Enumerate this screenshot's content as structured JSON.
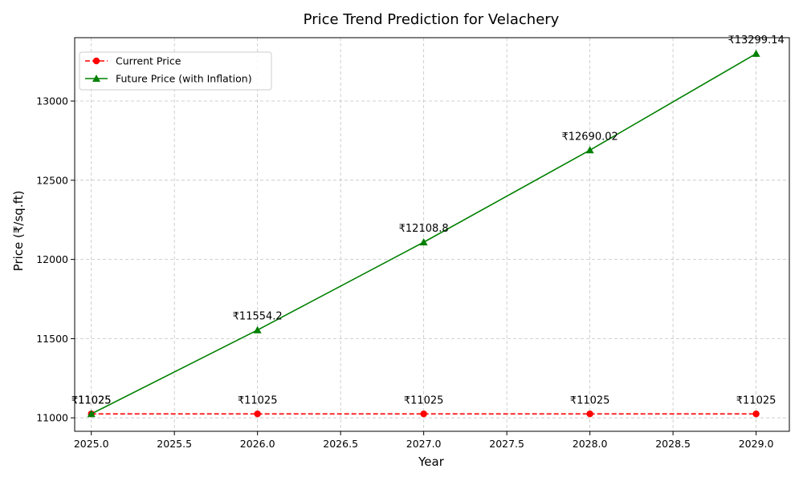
{
  "chart_data": {
    "type": "line",
    "title": "Price Trend Prediction for Velachery",
    "xlabel": "Year",
    "ylabel": "Price (₹/sq.ft)",
    "x": [
      2025,
      2026,
      2027,
      2028,
      2029
    ],
    "xlim": [
      2024.9,
      2029.2
    ],
    "ylim": [
      10915,
      13400
    ],
    "xticks": [
      2025.0,
      2025.5,
      2026.0,
      2026.5,
      2027.0,
      2027.5,
      2028.0,
      2028.5,
      2029.0
    ],
    "xtick_labels": [
      "2025.0",
      "2025.5",
      "2026.0",
      "2026.5",
      "2027.0",
      "2027.5",
      "2028.0",
      "2028.5",
      "2029.0"
    ],
    "yticks": [
      11000,
      11500,
      12000,
      12500,
      13000
    ],
    "ytick_labels": [
      "11000",
      "11500",
      "12000",
      "12500",
      "13000"
    ],
    "grid": true,
    "legend_position": "top-left",
    "series": [
      {
        "name": "Current Price",
        "values": [
          11025,
          11025,
          11025,
          11025,
          11025
        ],
        "labels": [
          "₹11025",
          "₹11025",
          "₹11025",
          "₹11025",
          "₹11025"
        ],
        "color": "#ff0000",
        "marker": "circle",
        "dashed": true
      },
      {
        "name": "Future Price (with Inflation)",
        "values": [
          11025,
          11554.2,
          12108.8,
          12690.02,
          13299.14
        ],
        "labels": [
          "₹11025",
          "₹11554.2",
          "₹12108.8",
          "₹12690.02",
          "₹13299.14"
        ],
        "color": "#008000",
        "marker": "triangle",
        "dashed": false
      }
    ]
  }
}
